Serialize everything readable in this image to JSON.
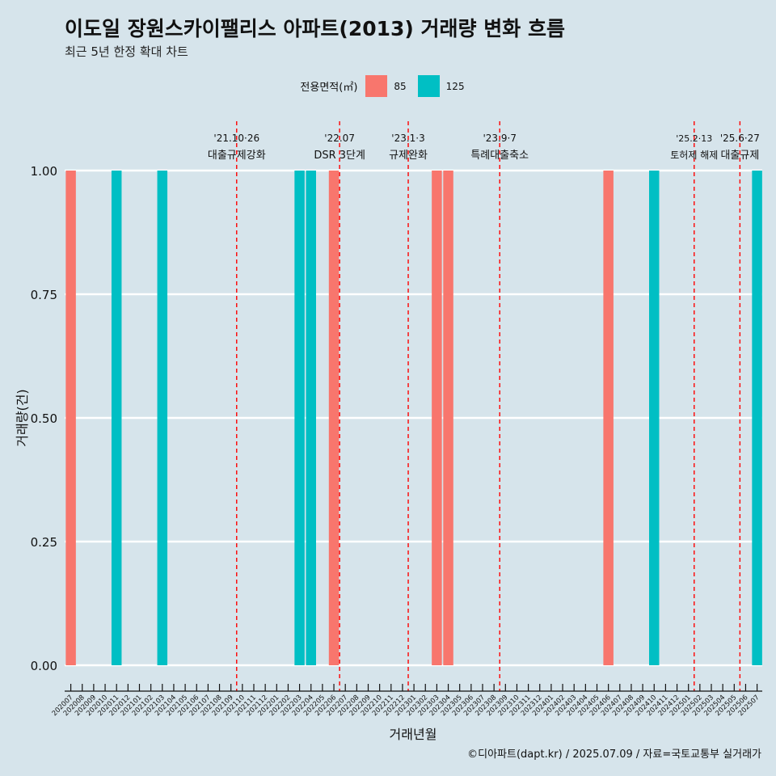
{
  "title": "이도일 장원스카이팰리스 아파트(2013) 거래량 변화 흐름",
  "subtitle": "최근 5년 한정 확대 차트",
  "legend": {
    "title": "전용면적(㎡)",
    "items": [
      {
        "label": "85",
        "color": "#F8766D"
      },
      {
        "label": "125",
        "color": "#00BFC4"
      }
    ]
  },
  "caption": "©디아파트(dapt.kr) / 2025.07.09 / 자료=국토교통부 실거래가",
  "chart_data": {
    "type": "bar",
    "xlabel": "거래년월",
    "ylabel": "거래량(건)",
    "ylim": [
      0,
      1
    ],
    "yticks": [
      "0.00",
      "0.25",
      "0.50",
      "0.75",
      "1.00"
    ],
    "grid": true,
    "legend_position": "top",
    "categories": [
      "202007",
      "202008",
      "202009",
      "202010",
      "202011",
      "202012",
      "202101",
      "202102",
      "202103",
      "202104",
      "202105",
      "202106",
      "202107",
      "202108",
      "202109",
      "202110",
      "202111",
      "202112",
      "202201",
      "202202",
      "202203",
      "202204",
      "202205",
      "202206",
      "202207",
      "202208",
      "202209",
      "202210",
      "202211",
      "202212",
      "202301",
      "202302",
      "202303",
      "202304",
      "202305",
      "202306",
      "202307",
      "202308",
      "202309",
      "202310",
      "202311",
      "202312",
      "202401",
      "202402",
      "202403",
      "202404",
      "202405",
      "202406",
      "202407",
      "202408",
      "202409",
      "202410",
      "202411",
      "202412",
      "202501",
      "202502",
      "202503",
      "202504",
      "202505",
      "202506",
      "202507"
    ],
    "series": [
      {
        "name": "85",
        "color": "#F8766D",
        "points": [
          {
            "x": "202007",
            "y": 1
          },
          {
            "x": "202206",
            "y": 1
          },
          {
            "x": "202303",
            "y": 1
          },
          {
            "x": "202304",
            "y": 1
          },
          {
            "x": "202406",
            "y": 1
          }
        ]
      },
      {
        "name": "125",
        "color": "#00BFC4",
        "points": [
          {
            "x": "202011",
            "y": 1
          },
          {
            "x": "202103",
            "y": 1
          },
          {
            "x": "202203",
            "y": 1
          },
          {
            "x": "202204",
            "y": 1
          },
          {
            "x": "202410",
            "y": 1
          },
          {
            "x": "202507",
            "y": 1
          }
        ]
      }
    ],
    "annotations": [
      {
        "x": "202110",
        "label1": "'21.10·26",
        "label2": "대출규제강화",
        "style": "dashed",
        "color": "#FF0000"
      },
      {
        "x": "202207",
        "label1": "'22.07",
        "label2": "DSR 3단계",
        "style": "dashed",
        "color": "#FF0000"
      },
      {
        "x": "202301",
        "label1": "'23.1·3",
        "label2": "규제완화",
        "style": "dashed",
        "color": "#FF0000"
      },
      {
        "x": "202309",
        "label1": "'23.9·7",
        "label2": "특례대출축소",
        "style": "dashed",
        "color": "#FF0000"
      },
      {
        "x": "202502",
        "label1": "'25.2·13",
        "label2": "토허제 해제",
        "style": "dashed",
        "color": "#FF0000"
      },
      {
        "x": "202506",
        "label1": "'25.6·27",
        "label2": "대출규제",
        "style": "dashed",
        "color": "#FF0000"
      }
    ]
  }
}
